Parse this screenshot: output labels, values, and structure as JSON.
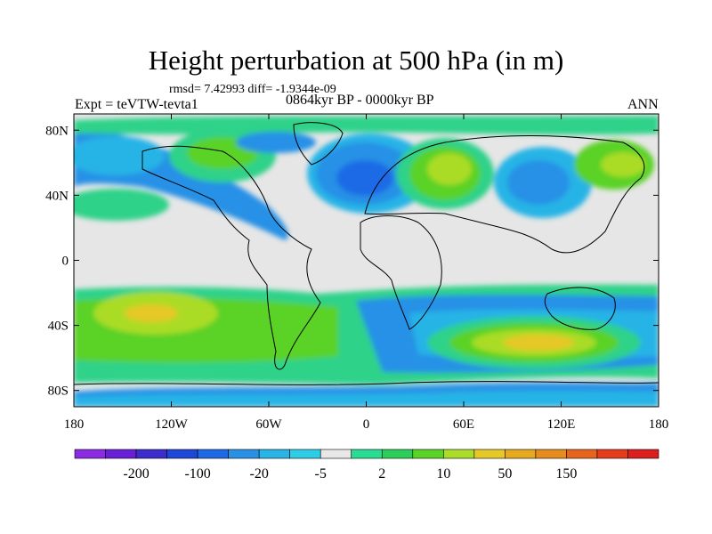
{
  "title": "Height perturbation at 500 hPa (in m)",
  "stats": "rmsd= 7.42993  diff= -1.9344e-09",
  "experiment": "Expt = teVTW-tevta1",
  "period": "0864kyr BP - 0000kyr BP",
  "season": "ANN",
  "map": {
    "projection": "cylindrical equidistant",
    "lon_range": [
      -180,
      180
    ],
    "lat_range": [
      -90,
      90
    ],
    "lon_ticks": [
      "180",
      "120W",
      "60W",
      "0",
      "60E",
      "120E",
      "180"
    ],
    "lat_ticks": [
      "80N",
      "40N",
      "0",
      "40S",
      "80S"
    ]
  },
  "colorbar": {
    "labels": [
      "-200",
      "-100",
      "-20",
      "-5",
      "2",
      "10",
      "50",
      "150"
    ],
    "colors": [
      "#8b2be2",
      "#6a1ed8",
      "#3c2ccc",
      "#1e46d8",
      "#1e6ae6",
      "#2891e6",
      "#28b4e6",
      "#2dcde6",
      "#e8e8e8",
      "#28dc91",
      "#2dcd5a",
      "#5ad228",
      "#aadc28",
      "#e6c828",
      "#e6aa1e",
      "#e68c1e",
      "#e6641e",
      "#e63c1e",
      "#dc1e1e"
    ]
  }
}
